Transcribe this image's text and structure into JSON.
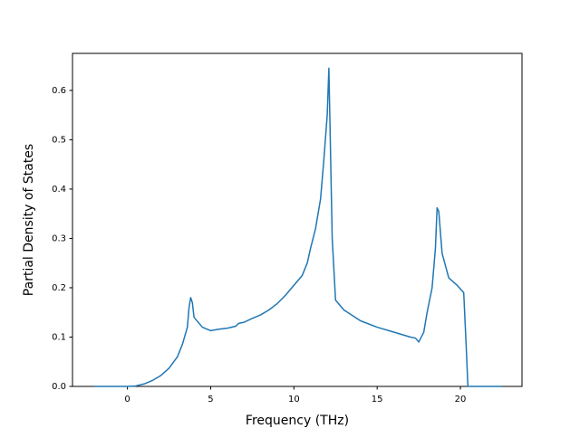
{
  "chart_data": {
    "type": "line",
    "xlabel": "Frequency (THz)",
    "ylabel": "Partial Density of States",
    "x": [
      -2,
      -1,
      0,
      0.5,
      1,
      1.5,
      2,
      2.5,
      3,
      3.3,
      3.6,
      3.7,
      3.8,
      3.9,
      4.0,
      4.5,
      5,
      5.5,
      6,
      6.5,
      6.7,
      7,
      7.5,
      8,
      8.5,
      9,
      9.5,
      10,
      10.5,
      10.8,
      11,
      11.3,
      11.6,
      11.8,
      12,
      12.1,
      12.3,
      12.5,
      13,
      14,
      15,
      16,
      17,
      17.3,
      17.5,
      17.8,
      18,
      18.3,
      18.5,
      18.6,
      18.7,
      18.9,
      19.3,
      19.8,
      20.2,
      20.35,
      20.45,
      21,
      22.5
    ],
    "series": [
      {
        "color": "#1f77b4",
        "values": [
          0,
          0,
          0,
          0.001,
          0.005,
          0.012,
          0.022,
          0.037,
          0.06,
          0.085,
          0.12,
          0.16,
          0.18,
          0.17,
          0.14,
          0.12,
          0.113,
          0.116,
          0.118,
          0.122,
          0.128,
          0.13,
          0.138,
          0.145,
          0.155,
          0.168,
          0.185,
          0.205,
          0.225,
          0.25,
          0.28,
          0.32,
          0.38,
          0.46,
          0.55,
          0.645,
          0.3,
          0.175,
          0.155,
          0.133,
          0.12,
          0.11,
          0.1,
          0.098,
          0.09,
          0.11,
          0.15,
          0.2,
          0.28,
          0.362,
          0.355,
          0.27,
          0.22,
          0.205,
          0.19,
          0.08,
          0,
          0,
          0
        ]
      }
    ],
    "xlim": [
      -3.3,
      23.7
    ],
    "ylim": [
      0,
      0.675
    ],
    "xticks": [
      0,
      5,
      10,
      15,
      20
    ],
    "yticks": [
      {
        "value": 0,
        "label": "0.0"
      },
      0.1,
      0.2,
      0.3,
      0.4,
      0.5,
      0.6
    ],
    "grid": false
  }
}
